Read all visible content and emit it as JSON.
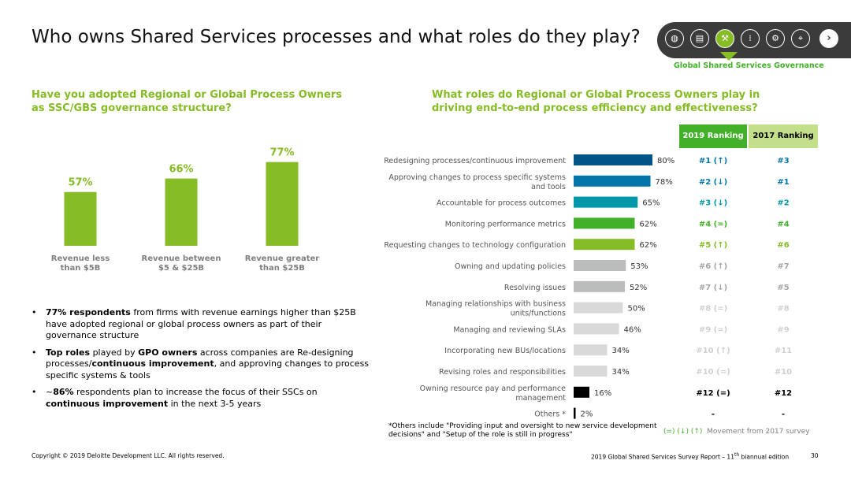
{
  "page_title": "Who owns Shared Services processes and what roles do they play?",
  "nav": {
    "icons": [
      "globe-icon",
      "document-icon",
      "gavel-icon",
      "footprints-icon",
      "wrench-icon",
      "telescope-icon"
    ],
    "active_index": 2,
    "caption": "Global Shared Services Governance",
    "next_glyph": "›"
  },
  "left_heading": "Have you adopted Regional or Global Process Owners as SSC/GBS governance structure?",
  "right_heading": "What roles do Regional or Global Process Owners play in driving end-to-end process efficiency and effectiveness?",
  "colors": {
    "green": "#86bc25",
    "dark_green": "#43b02a",
    "light_green": "#c4df89",
    "teal_dark": "#005587",
    "teal": "#0076a8",
    "teal_light": "#0097a9",
    "gray": "#bbbcbc",
    "light_gray": "#d9d9d9",
    "black": "#000000"
  },
  "chart_data": [
    {
      "type": "bar",
      "categories": [
        "Revenue less than $5B",
        "Revenue between $5 & $25B",
        "Revenue greater than $25B"
      ],
      "category_lines": [
        [
          "Revenue less",
          "than $5B"
        ],
        [
          "Revenue between",
          "$5 & $25B"
        ],
        [
          "Revenue greater",
          "than $25B"
        ]
      ],
      "values": [
        57,
        66,
        77
      ],
      "labels": [
        "57%",
        "66%",
        "77%"
      ],
      "ylim": [
        0,
        100
      ]
    },
    {
      "type": "bar",
      "orientation": "horizontal",
      "categories": [
        "Redesigning processes/continuous improvement",
        "Approving changes to process specific systems and tools",
        "Accountable for process outcomes",
        "Monitoring performance metrics",
        "Requesting changes to technology configuration",
        "Owning and updating policies",
        "Resolving issues",
        "Managing relationships with business units/functions",
        "Managing and reviewing SLAs",
        "Incorporating new BUs/locations",
        "Revising roles and responsibilities",
        "Owning resource pay and performance management",
        "Others *"
      ],
      "category_lines": [
        [
          "Redesigning processes/continuous improvement"
        ],
        [
          "Approving changes to process specific systems",
          "and tools"
        ],
        [
          "Accountable for process outcomes"
        ],
        [
          "Monitoring performance metrics"
        ],
        [
          "Requesting changes to technology configuration"
        ],
        [
          "Owning and updating policies"
        ],
        [
          "Resolving issues"
        ],
        [
          "Managing relationships with business",
          "units/functions"
        ],
        [
          "Managing and reviewing SLAs"
        ],
        [
          "Incorporating new BUs/locations"
        ],
        [
          "Revising roles and responsibilities"
        ],
        [
          "Owning resource pay and performance",
          "management"
        ],
        [
          "Others *"
        ]
      ],
      "values": [
        80,
        78,
        65,
        62,
        62,
        53,
        52,
        50,
        46,
        34,
        34,
        16,
        2
      ],
      "labels": [
        "80%",
        "78%",
        "65%",
        "62%",
        "62%",
        "53%",
        "52%",
        "50%",
        "46%",
        "34%",
        "34%",
        "16%",
        "2%"
      ],
      "bar_colors": [
        "#005587",
        "#0076a8",
        "#0097a9",
        "#43b02a",
        "#86bc25",
        "#bbbcbc",
        "#bbbcbc",
        "#d9d9d9",
        "#d9d9d9",
        "#d9d9d9",
        "#d9d9d9",
        "#000000",
        "#000000"
      ],
      "ranking_2019": [
        "#1 (↑)",
        "#2 (↓)",
        "#3 (↓)",
        "#4 (=)",
        "#5 (↑)",
        "#6 (↑)",
        "#7 (↓)",
        "#8 (=)",
        "#9 (=)",
        "#10 (↑)",
        "#10 (=)",
        "#12 (=)",
        "-"
      ],
      "ranking_2017": [
        "#3",
        "#1",
        "#2",
        "#4",
        "#6",
        "#7",
        "#5",
        "#8",
        "#9",
        "#11",
        "#10",
        "#12",
        "-"
      ],
      "rank_colors": [
        "#0076a8",
        "#0076a8",
        "#0097a9",
        "#43b02a",
        "#86bc25",
        "#a5a5a5",
        "#a5a5a5",
        "#d0d0d0",
        "#d0d0d0",
        "#d0d0d0",
        "#d0d0d0",
        "#000000",
        "#000000"
      ],
      "xlim": [
        0,
        100
      ]
    }
  ],
  "ranking_headers": {
    "y2019": "2019 Ranking",
    "y2017": "2017 Ranking"
  },
  "bullets": [
    [
      {
        "b": true,
        "t": "77% respondents"
      },
      {
        "b": false,
        "t": " from firms with revenue earnings higher than $25B have adopted regional or global process owners as part of their governance structure"
      }
    ],
    [
      {
        "b": true,
        "t": "Top roles"
      },
      {
        "b": false,
        "t": " played by "
      },
      {
        "b": true,
        "t": "GPO owners"
      },
      {
        "b": false,
        "t": " across companies are Re-designing processes/"
      },
      {
        "b": true,
        "t": "continuous improvement"
      },
      {
        "b": false,
        "t": ", and approving changes to process specific systems & tools"
      }
    ],
    [
      {
        "b": false,
        "t": "~"
      },
      {
        "b": true,
        "t": "86%"
      },
      {
        "b": false,
        "t": " respondents plan to increase the focus of their SSCs on "
      },
      {
        "b": true,
        "t": "continuous improvement"
      },
      {
        "b": false,
        "t": " in the next 3-5 years"
      }
    ]
  ],
  "footnote": "*Others include \"Providing input and oversight to new service development decisions\" and \"Setup of the role is still in progress\"",
  "legend": {
    "symbols": "(=) (↓) (↑)",
    "text": "Movement from 2017 survey"
  },
  "copyright": "Copyright © 2019 Deloitte Development LLC. All rights reserved.",
  "report_name_main": "2019 Global Shared Services Survey Report – 11",
  "report_name_sup": "th",
  "report_name_tail": " biannual edition",
  "page_number": "30"
}
